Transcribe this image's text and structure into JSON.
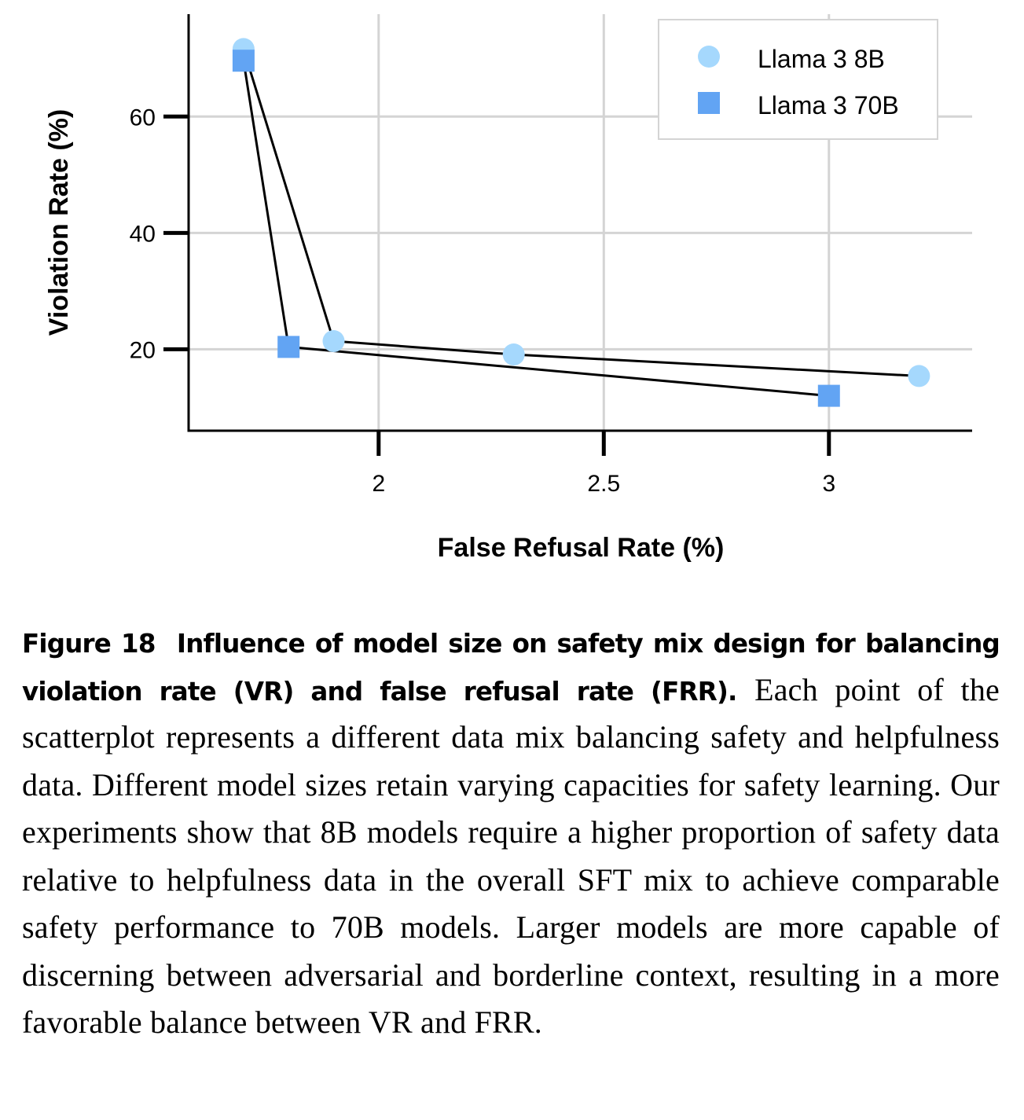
{
  "chart_data": {
    "type": "scatter",
    "title": "",
    "xlabel": "False Refusal Rate (%)",
    "ylabel": "Violation Rate (%)",
    "xlim": [
      1.578,
      3.318
    ],
    "ylim": [
      6.0,
      77.6
    ],
    "xticks": [
      2,
      2.5,
      3
    ],
    "xtick_labels": [
      "2",
      "2.5",
      "3"
    ],
    "yticks": [
      20,
      40,
      60
    ],
    "ytick_labels": [
      "20",
      "40",
      "60"
    ],
    "grid": true,
    "legend_position": "top-right",
    "series": [
      {
        "name": "Llama 3 8B",
        "marker": "circle",
        "color": "#a5d8fd",
        "connected": true,
        "points": [
          {
            "x": 1.7,
            "y": 71.6
          },
          {
            "x": 1.9,
            "y": 21.4
          },
          {
            "x": 2.3,
            "y": 19.1
          },
          {
            "x": 3.2,
            "y": 15.4
          }
        ]
      },
      {
        "name": "Llama 3 70B",
        "marker": "square",
        "color": "#62a4f3",
        "connected": true,
        "points": [
          {
            "x": 1.7,
            "y": 69.6
          },
          {
            "x": 1.8,
            "y": 20.4
          },
          {
            "x": 3.0,
            "y": 12.0
          }
        ]
      }
    ]
  },
  "colors": {
    "grid": "#d4d4d4",
    "axis": "#000000",
    "line": "#000000",
    "legend_border": "#d4d4d4"
  },
  "caption": {
    "label": "Figure 18",
    "title": "Influence of model size on safety mix design for balancing violation rate (VR) and false refusal rate (FRR).",
    "body": "Each point of the scatterplot represents a different data mix balancing safety and helpfulness data. Different model sizes retain varying capacities for safety learning. Our experiments show that 8B models require a higher proportion of safety data relative to helpfulness data in the overall SFT mix to achieve comparable safety performance to 70B models. Larger models are more capable of discerning between adversarial and borderline context, resulting in a more favorable balance between VR and FRR."
  }
}
